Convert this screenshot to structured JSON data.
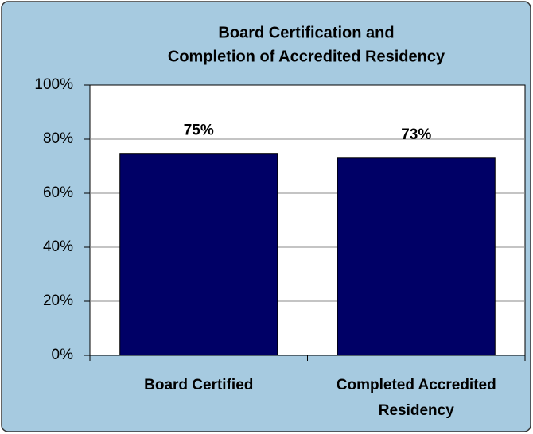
{
  "chart_data": {
    "type": "bar",
    "title": [
      "Board Certification and",
      "Completion of Accredited Residency"
    ],
    "categories": [
      "Board Certified",
      "Completed Accredited Residency"
    ],
    "values": [
      74.5,
      73
    ],
    "value_labels": [
      "75%",
      "73%"
    ],
    "color": "#000066",
    "ylim": [
      0,
      100
    ],
    "yticks": [
      {
        "value": 0,
        "label": "0%"
      },
      {
        "value": 20,
        "label": "20%"
      },
      {
        "value": 40,
        "label": "40%"
      },
      {
        "value": 60,
        "label": "60%"
      },
      {
        "value": 80,
        "label": "80%"
      },
      {
        "value": 100,
        "label": "100%"
      }
    ],
    "grid": true
  }
}
